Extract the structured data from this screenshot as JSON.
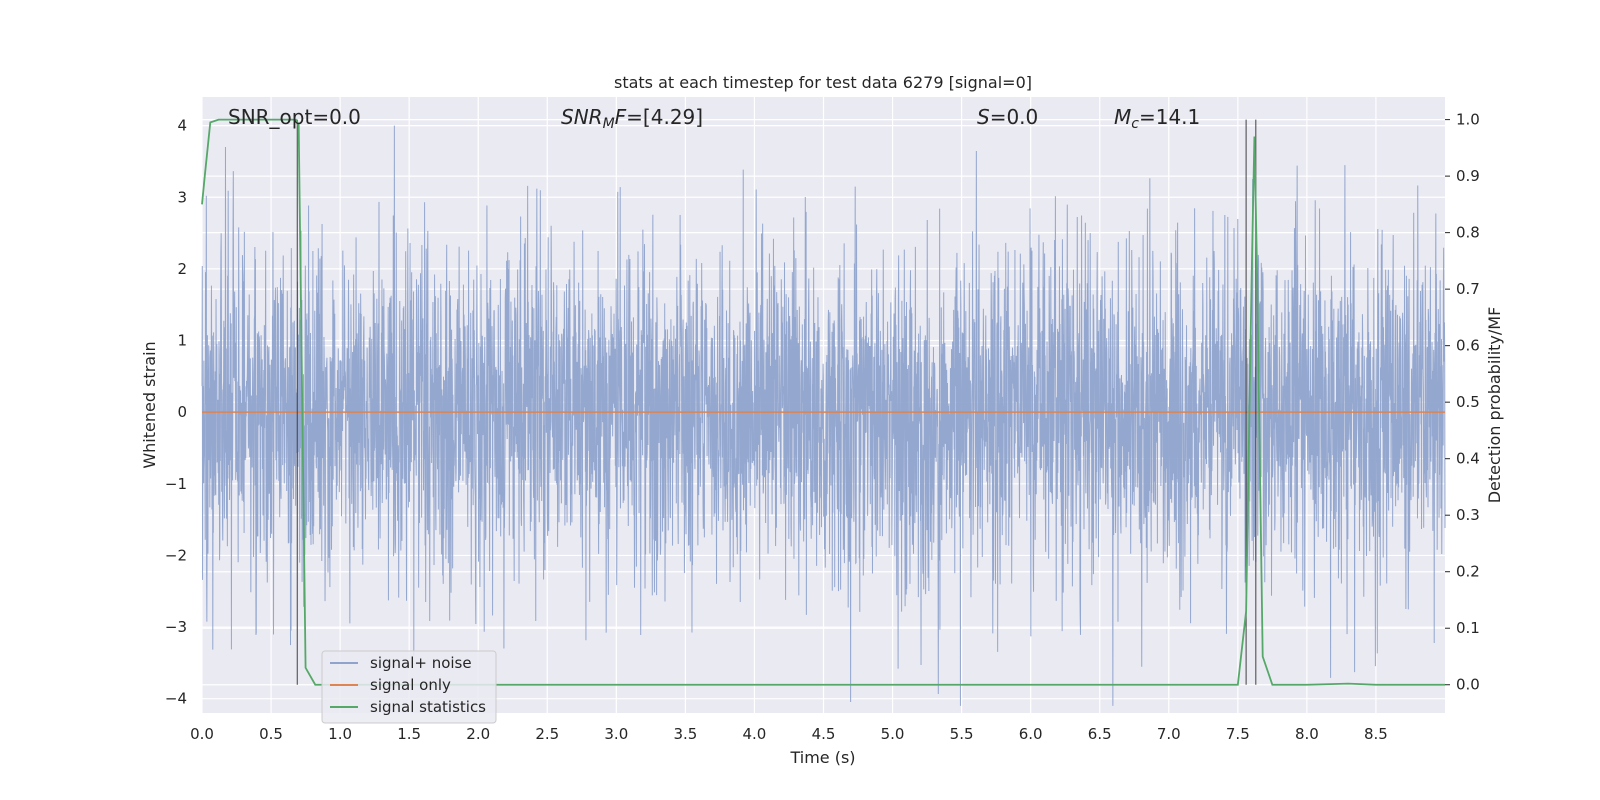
{
  "chart_data": {
    "type": "line",
    "title": "stats at each timestep for test data 6279 [signal=0]",
    "xlabel": "Time (s)",
    "ylabel": "Whitened strain",
    "ylabel_right": "Detection probability/MF",
    "xlim": [
      0.0,
      9.0
    ],
    "ylim": [
      -4.2,
      4.4
    ],
    "ylim_right": [
      -0.05,
      1.04
    ],
    "xticks": [
      "0.0",
      "0.5",
      "1.0",
      "1.5",
      "2.0",
      "2.5",
      "3.0",
      "3.5",
      "4.0",
      "4.5",
      "5.0",
      "5.5",
      "6.0",
      "6.5",
      "7.0",
      "7.5",
      "8.0",
      "8.5"
    ],
    "yticks": [
      "4",
      "3",
      "2",
      "1",
      "0",
      "−1",
      "−2",
      "−3",
      "−4"
    ],
    "yticks_right": [
      "1.0",
      "0.9",
      "0.8",
      "0.7",
      "0.6",
      "0.5",
      "0.4",
      "0.3",
      "0.2",
      "0.1",
      "0.0"
    ],
    "grid": true,
    "legend_position": "lower-left",
    "annotations": {
      "snr_opt": "SNR_opt=0.0",
      "snr_mf_main": "SNR",
      "snr_mf_sub": "M",
      "snr_mf_tail": "F",
      "snr_mf_value": "=[4.29]",
      "s_symbol": "S",
      "s_value": "=0.0",
      "mc_symbol": "M",
      "mc_sub": "c",
      "mc_value": "=14.1"
    },
    "series": [
      {
        "name": "signal+ noise",
        "color": "#8fa3cc",
        "axis": "left",
        "style": "noise",
        "x_range": [
          0.0,
          9.0
        ],
        "sample_rate_hz": 2048,
        "amplitude_std": 1.0
      },
      {
        "name": "signal only",
        "color": "#dd8452",
        "axis": "left",
        "x": [
          0.0,
          9.0
        ],
        "y": [
          0.0,
          0.0
        ]
      },
      {
        "name": "signal statistics",
        "color": "#55a868",
        "axis": "right",
        "x": [
          0.0,
          0.02,
          0.06,
          0.12,
          0.2,
          0.4,
          0.6,
          0.68,
          0.7,
          0.75,
          0.82,
          1.0,
          2.0,
          3.0,
          4.0,
          5.0,
          6.0,
          7.0,
          7.5,
          7.56,
          7.6,
          7.62,
          7.64,
          7.68,
          7.75,
          7.85,
          8.0,
          8.3,
          8.5,
          8.8,
          9.0
        ],
        "y": [
          0.85,
          0.9,
          0.995,
          1.0,
          1.0,
          1.0,
          1.0,
          1.0,
          0.99,
          0.03,
          0.0,
          0.0,
          0.0,
          0.0,
          0.0,
          0.0,
          0.0,
          0.0,
          0.0,
          0.13,
          0.72,
          0.97,
          0.72,
          0.05,
          0.0,
          0.0,
          0.0,
          0.002,
          0.0,
          0.0,
          0.0
        ]
      }
    ],
    "vlines": [
      0.69,
      7.56,
      7.63
    ]
  }
}
